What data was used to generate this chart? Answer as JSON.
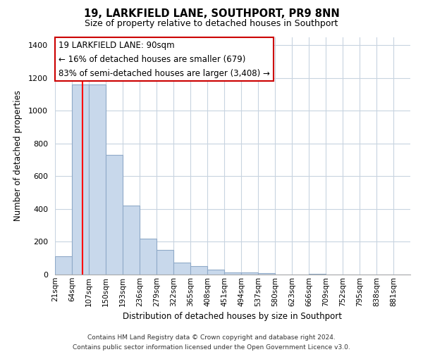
{
  "title": "19, LARKFIELD LANE, SOUTHPORT, PR9 8NN",
  "subtitle": "Size of property relative to detached houses in Southport",
  "xlabel": "Distribution of detached houses by size in Southport",
  "ylabel": "Number of detached properties",
  "bar_color": "#c8d8eb",
  "bar_edge_color": "#90aac8",
  "red_line_x": 90,
  "categories": [
    "21sqm",
    "64sqm",
    "107sqm",
    "150sqm",
    "193sqm",
    "236sqm",
    "279sqm",
    "322sqm",
    "365sqm",
    "408sqm",
    "451sqm",
    "494sqm",
    "537sqm",
    "580sqm",
    "623sqm",
    "666sqm",
    "709sqm",
    "752sqm",
    "795sqm",
    "838sqm",
    "881sqm"
  ],
  "bin_edges": [
    21,
    64,
    107,
    150,
    193,
    236,
    279,
    322,
    365,
    408,
    451,
    494,
    537,
    580,
    623,
    666,
    709,
    752,
    795,
    838,
    881,
    924
  ],
  "values": [
    110,
    1160,
    1160,
    730,
    420,
    220,
    150,
    75,
    50,
    30,
    15,
    12,
    8,
    0,
    0,
    5,
    0,
    0,
    0,
    0,
    0
  ],
  "ylim": [
    0,
    1450
  ],
  "yticks": [
    0,
    200,
    400,
    600,
    800,
    1000,
    1200,
    1400
  ],
  "annotation_line1": "19 LARKFIELD LANE: 90sqm",
  "annotation_line2": "← 16% of detached houses are smaller (679)",
  "annotation_line3": "83% of semi-detached houses are larger (3,408) →",
  "annotation_box_color": "#ffffff",
  "annotation_box_edge": "#cc0000",
  "footer_line1": "Contains HM Land Registry data © Crown copyright and database right 2024.",
  "footer_line2": "Contains public sector information licensed under the Open Government Licence v3.0.",
  "bg_color": "#ffffff",
  "grid_color": "#c8d4e0"
}
